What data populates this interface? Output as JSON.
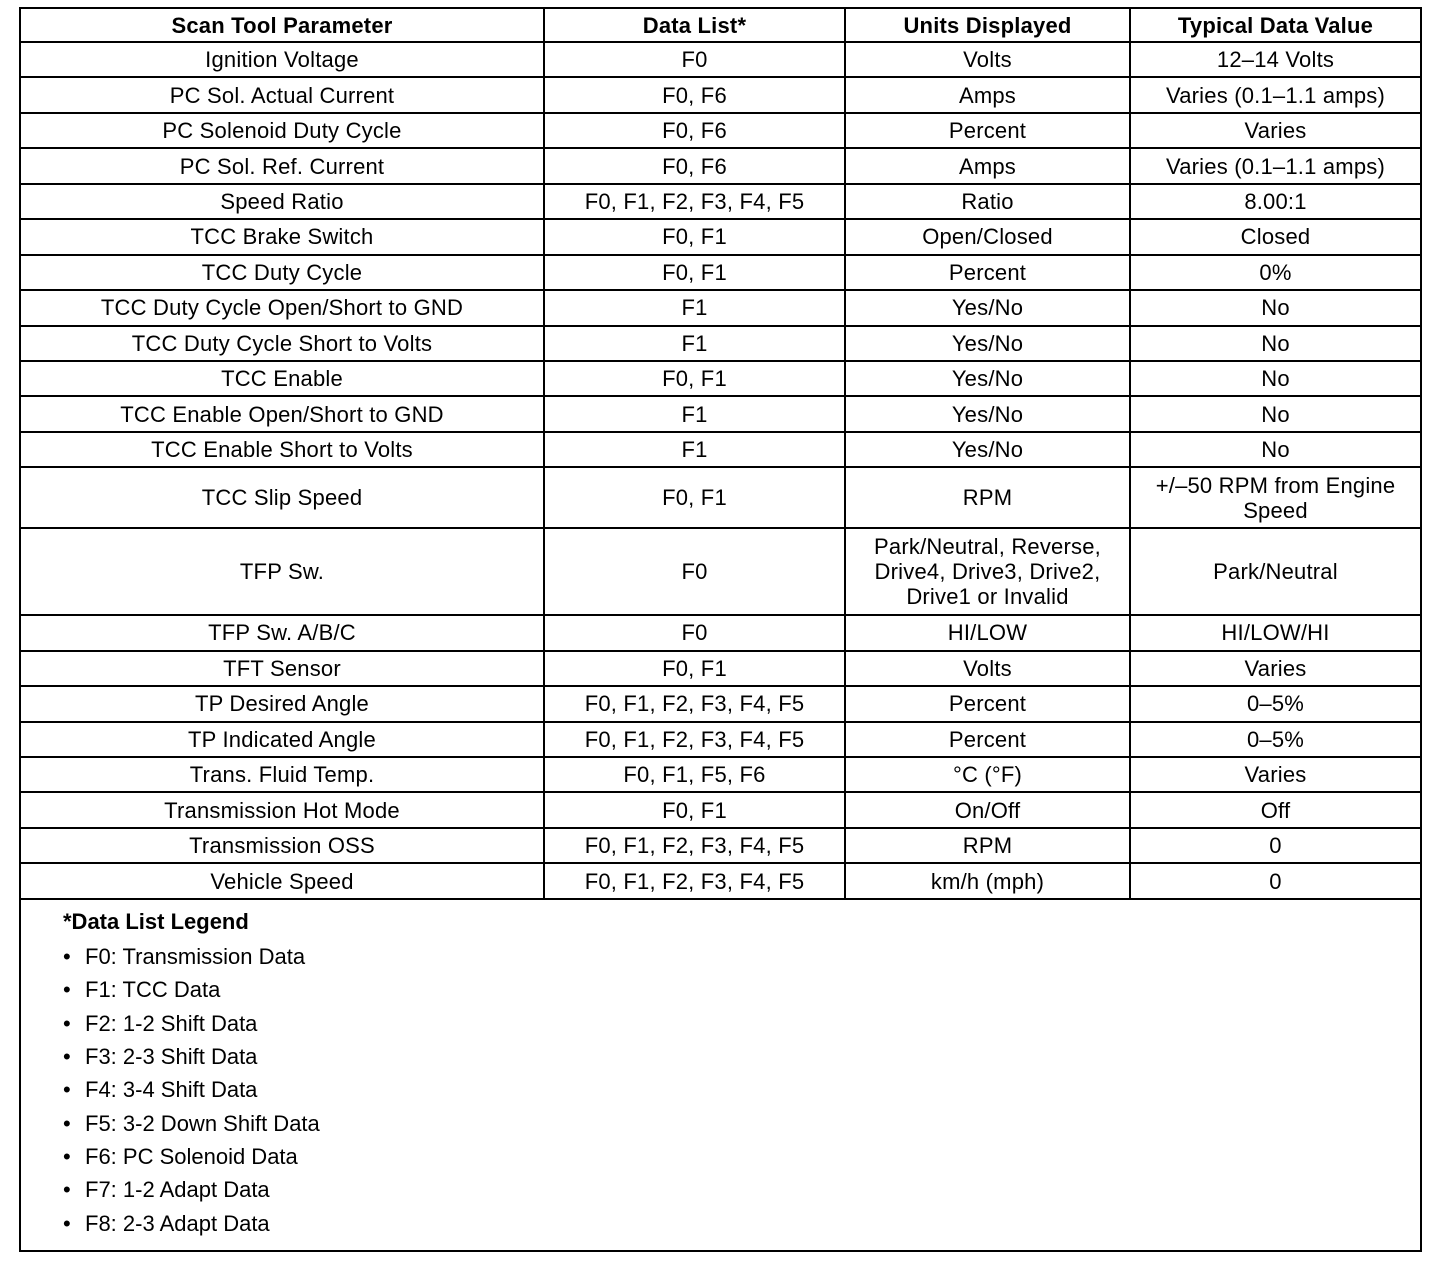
{
  "table": {
    "headers": [
      "Scan Tool Parameter",
      "Data List*",
      "Units Displayed",
      "Typical Data Value"
    ],
    "rows": [
      [
        "Ignition Voltage",
        "F0",
        "Volts",
        "12–14 Volts"
      ],
      [
        "PC Sol. Actual Current",
        "F0, F6",
        "Amps",
        "Varies (0.1–1.1 amps)"
      ],
      [
        "PC Solenoid Duty Cycle",
        "F0, F6",
        "Percent",
        "Varies"
      ],
      [
        "PC Sol. Ref. Current",
        "F0, F6",
        "Amps",
        "Varies (0.1–1.1 amps)"
      ],
      [
        "Speed Ratio",
        "F0, F1, F2, F3, F4, F5",
        "Ratio",
        "8.00:1"
      ],
      [
        "TCC Brake Switch",
        "F0, F1",
        "Open/Closed",
        "Closed"
      ],
      [
        "TCC Duty Cycle",
        "F0, F1",
        "Percent",
        "0%"
      ],
      [
        "TCC Duty Cycle Open/Short to GND",
        "F1",
        "Yes/No",
        "No"
      ],
      [
        "TCC Duty Cycle Short to Volts",
        "F1",
        "Yes/No",
        "No"
      ],
      [
        "TCC Enable",
        "F0, F1",
        "Yes/No",
        "No"
      ],
      [
        "TCC Enable Open/Short to GND",
        "F1",
        "Yes/No",
        "No"
      ],
      [
        "TCC Enable Short to Volts",
        "F1",
        "Yes/No",
        "No"
      ],
      [
        "TCC Slip Speed",
        "F0, F1",
        "RPM",
        "+/–50 RPM from Engine Speed"
      ],
      [
        "TFP Sw.",
        "F0",
        "Park/Neutral, Reverse, Drive4, Drive3, Drive2, Drive1 or Invalid",
        "Park/Neutral"
      ],
      [
        "TFP Sw. A/B/C",
        "F0",
        "HI/LOW",
        "HI/LOW/HI"
      ],
      [
        "TFT Sensor",
        "F0, F1",
        "Volts",
        "Varies"
      ],
      [
        "TP Desired Angle",
        "F0, F1, F2, F3, F4, F5",
        "Percent",
        "0–5%"
      ],
      [
        "TP Indicated Angle",
        "F0, F1, F2, F3, F4, F5",
        "Percent",
        "0–5%"
      ],
      [
        "Trans. Fluid Temp.",
        "F0, F1, F5, F6",
        "°C (°F)",
        "Varies"
      ],
      [
        "Transmission Hot Mode",
        "F0, F1",
        "On/Off",
        "Off"
      ],
      [
        "Transmission OSS",
        "F0, F1, F2, F3, F4, F5",
        "RPM",
        "0"
      ],
      [
        "Vehicle Speed",
        "F0, F1, F2, F3, F4, F5",
        "km/h (mph)",
        "0"
      ]
    ]
  },
  "legend": {
    "title": "*Data List Legend",
    "bullet": "•",
    "items": [
      "F0: Transmission Data",
      "F1: TCC Data",
      "F2: 1-2 Shift Data",
      "F3: 2-3 Shift Data",
      "F4: 3-4 Shift Data",
      "F5: 3-2 Down Shift Data",
      "F6: PC Solenoid Data",
      "F7: 1-2 Adapt Data",
      "F8: 2-3 Adapt Data"
    ]
  }
}
